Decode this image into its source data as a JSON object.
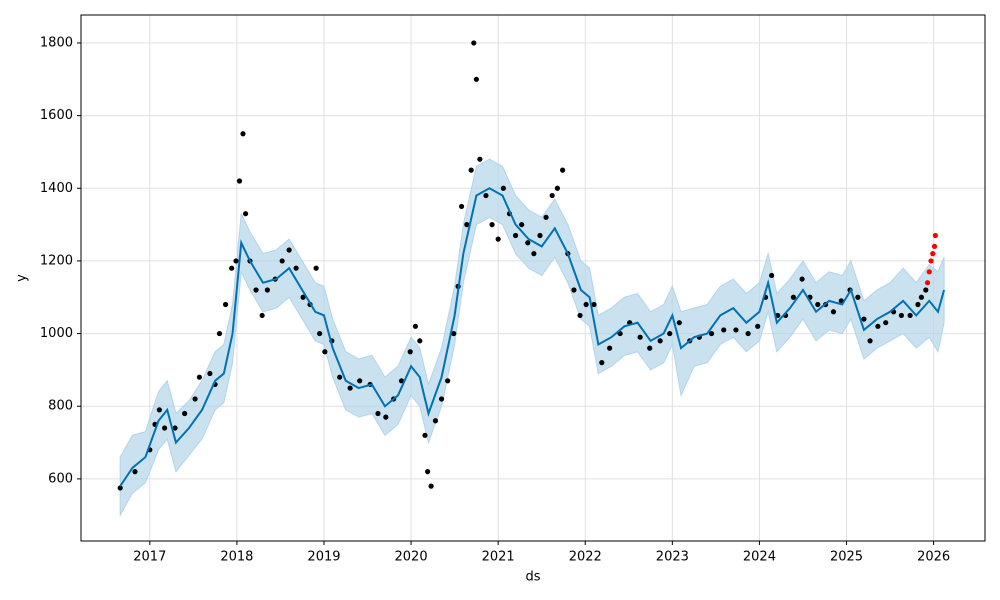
{
  "chart_data": {
    "type": "forecast",
    "x_label": "ds",
    "y_label": "y",
    "xlim": [
      2016.21,
      2026.59
    ],
    "ylim": [
      429,
      1877
    ],
    "xticks": [
      2017,
      2018,
      2019,
      2020,
      2021,
      2022,
      2023,
      2024,
      2025,
      2026
    ],
    "yticks": [
      600,
      800,
      1000,
      1200,
      1400,
      1600,
      1800
    ],
    "grid": true,
    "observed": {
      "color": "#000000",
      "x": [
        2016.66,
        2016.83,
        2017.0,
        2017.06,
        2017.11,
        2017.17,
        2017.29,
        2017.4,
        2017.52,
        2017.57,
        2017.69,
        2017.75,
        2017.8,
        2017.87,
        2017.94,
        2017.99,
        2018.03,
        2018.07,
        2018.1,
        2018.15,
        2018.22,
        2018.29,
        2018.35,
        2018.44,
        2018.52,
        2018.6,
        2018.68,
        2018.76,
        2018.84,
        2018.91,
        2018.95,
        2019.01,
        2019.09,
        2019.18,
        2019.3,
        2019.41,
        2019.53,
        2019.62,
        2019.71,
        2019.8,
        2019.89,
        2019.99,
        2020.05,
        2020.1,
        2020.16,
        2020.19,
        2020.23,
        2020.28,
        2020.35,
        2020.42,
        2020.49,
        2020.54,
        2020.58,
        2020.64,
        2020.69,
        2020.72,
        2020.75,
        2020.79,
        2020.86,
        2020.93,
        2021.0,
        2021.06,
        2021.13,
        2021.2,
        2021.27,
        2021.34,
        2021.41,
        2021.48,
        2021.55,
        2021.62,
        2021.68,
        2021.74,
        2021.8,
        2021.87,
        2021.94,
        2022.01,
        2022.1,
        2022.19,
        2022.28,
        2022.4,
        2022.51,
        2022.63,
        2022.74,
        2022.86,
        2022.97,
        2023.08,
        2023.2,
        2023.31,
        2023.45,
        2023.59,
        2023.73,
        2023.87,
        2023.98,
        2024.07,
        2024.14,
        2024.21,
        2024.3,
        2024.39,
        2024.49,
        2024.58,
        2024.67,
        2024.76,
        2024.85,
        2024.94,
        2025.04,
        2025.13,
        2025.2,
        2025.27,
        2025.36,
        2025.45,
        2025.54,
        2025.63,
        2025.73,
        2025.82,
        2025.86,
        2025.91
      ],
      "y": [
        575,
        620,
        680,
        750,
        790,
        740,
        740,
        780,
        820,
        880,
        890,
        860,
        1000,
        1080,
        1180,
        1200,
        1420,
        1550,
        1330,
        1200,
        1120,
        1050,
        1120,
        1150,
        1200,
        1230,
        1180,
        1100,
        1080,
        1180,
        1000,
        950,
        980,
        880,
        850,
        870,
        860,
        780,
        770,
        820,
        870,
        950,
        1020,
        980,
        720,
        620,
        580,
        760,
        820,
        870,
        1000,
        1130,
        1350,
        1300,
        1450,
        1800,
        1700,
        1480,
        1380,
        1300,
        1260,
        1400,
        1330,
        1270,
        1300,
        1250,
        1220,
        1270,
        1320,
        1380,
        1400,
        1450,
        1220,
        1120,
        1050,
        1080,
        1080,
        920,
        960,
        1000,
        1030,
        990,
        960,
        980,
        1000,
        1030,
        980,
        990,
        1000,
        1010,
        1010,
        1000,
        1020,
        1100,
        1160,
        1050,
        1050,
        1100,
        1150,
        1100,
        1080,
        1080,
        1060,
        1090,
        1120,
        1100,
        1040,
        980,
        1020,
        1030,
        1060,
        1050,
        1050,
        1080,
        1100,
        1120
      ]
    },
    "recent": {
      "color": "#ff0000",
      "x": [
        2025.93,
        2025.95,
        2025.97,
        2025.99,
        2026.01,
        2026.02
      ],
      "y": [
        1140,
        1170,
        1200,
        1220,
        1240,
        1270
      ]
    },
    "forecast": {
      "color": "#0072b2",
      "band_color": "#b3d4ea",
      "x": [
        2016.66,
        2016.8,
        2016.95,
        2017.1,
        2017.2,
        2017.3,
        2017.45,
        2017.6,
        2017.75,
        2017.85,
        2017.95,
        2018.05,
        2018.15,
        2018.3,
        2018.45,
        2018.6,
        2018.75,
        2018.9,
        2019.0,
        2019.1,
        2019.25,
        2019.4,
        2019.55,
        2019.7,
        2019.85,
        2020.0,
        2020.1,
        2020.2,
        2020.35,
        2020.5,
        2020.6,
        2020.75,
        2020.9,
        2021.05,
        2021.2,
        2021.35,
        2021.5,
        2021.65,
        2021.8,
        2021.95,
        2022.05,
        2022.15,
        2022.3,
        2022.45,
        2022.6,
        2022.75,
        2022.9,
        2023.0,
        2023.1,
        2023.25,
        2023.4,
        2023.55,
        2023.7,
        2023.85,
        2024.0,
        2024.1,
        2024.2,
        2024.35,
        2024.5,
        2024.65,
        2024.8,
        2024.95,
        2025.05,
        2025.2,
        2025.35,
        2025.5,
        2025.65,
        2025.8,
        2025.95,
        2026.05,
        2026.12
      ],
      "yhat": [
        580,
        630,
        660,
        760,
        790,
        700,
        740,
        790,
        870,
        890,
        1000,
        1250,
        1200,
        1140,
        1150,
        1180,
        1120,
        1060,
        1050,
        960,
        870,
        850,
        860,
        800,
        830,
        910,
        880,
        780,
        880,
        1050,
        1220,
        1380,
        1400,
        1380,
        1300,
        1260,
        1240,
        1290,
        1220,
        1120,
        1100,
        970,
        990,
        1020,
        1030,
        980,
        1000,
        1050,
        960,
        990,
        1000,
        1050,
        1070,
        1030,
        1060,
        1140,
        1030,
        1070,
        1120,
        1060,
        1090,
        1080,
        1120,
        1010,
        1040,
        1060,
        1090,
        1050,
        1090,
        1060,
        1120
      ],
      "lower": [
        500,
        560,
        590,
        680,
        710,
        620,
        665,
        710,
        790,
        810,
        920,
        1170,
        1120,
        1060,
        1070,
        1100,
        1040,
        980,
        970,
        880,
        790,
        770,
        780,
        720,
        750,
        830,
        800,
        700,
        800,
        970,
        1140,
        1300,
        1320,
        1300,
        1220,
        1180,
        1160,
        1210,
        1140,
        1040,
        1020,
        890,
        910,
        940,
        950,
        900,
        920,
        970,
        830,
        910,
        920,
        970,
        990,
        950,
        980,
        1060,
        950,
        990,
        1040,
        980,
        1010,
        1000,
        1040,
        930,
        960,
        980,
        1000,
        960,
        990,
        950,
        1030
      ],
      "upper": [
        660,
        720,
        730,
        840,
        870,
        780,
        815,
        870,
        950,
        970,
        1080,
        1330,
        1280,
        1220,
        1230,
        1260,
        1200,
        1140,
        1130,
        1040,
        950,
        930,
        940,
        880,
        910,
        990,
        960,
        860,
        960,
        1130,
        1300,
        1460,
        1480,
        1460,
        1380,
        1340,
        1320,
        1370,
        1300,
        1200,
        1180,
        1050,
        1070,
        1100,
        1110,
        1060,
        1080,
        1130,
        1060,
        1070,
        1080,
        1130,
        1150,
        1110,
        1140,
        1220,
        1110,
        1150,
        1200,
        1140,
        1170,
        1160,
        1200,
        1090,
        1120,
        1140,
        1180,
        1140,
        1190,
        1170,
        1210
      ]
    }
  }
}
